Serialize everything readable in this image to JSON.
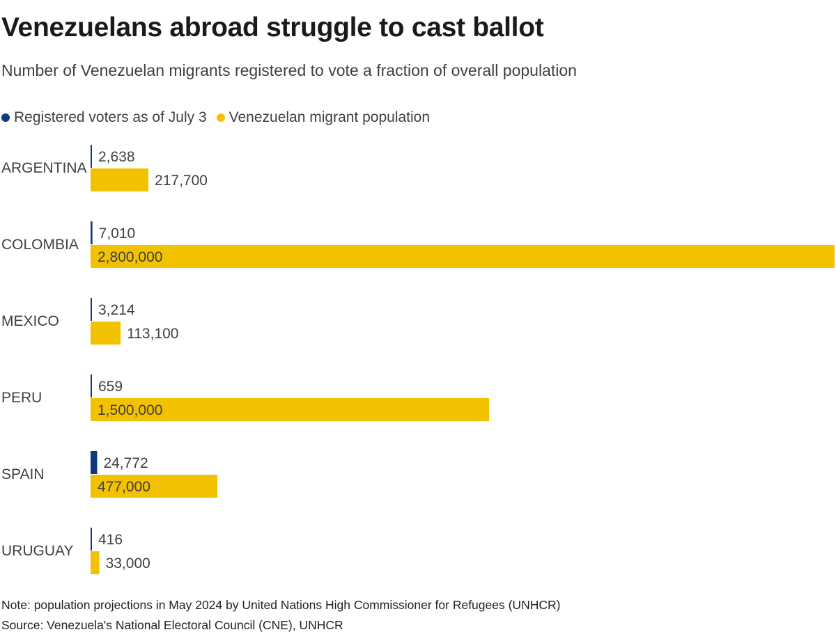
{
  "header": {
    "title": "Venezuelans abroad struggle to cast ballot",
    "subtitle": "Number of Venezuelan migrants registered to vote a fraction of overall population"
  },
  "legend": {
    "items": [
      {
        "label": "Registered voters as of July 3",
        "color": "#0d3a7d"
      },
      {
        "label": "Venezuelan migrant population",
        "color": "#f2c100"
      }
    ]
  },
  "chart_data": {
    "type": "bar",
    "orientation": "horizontal",
    "categories": [
      "ARGENTINA",
      "COLOMBIA",
      "MEXICO",
      "PERU",
      "SPAIN",
      "URUGUAY"
    ],
    "series": [
      {
        "name": "Registered voters as of July 3",
        "color": "#0d3a7d",
        "values": [
          2638,
          7010,
          3214,
          659,
          24772,
          416
        ],
        "labels": [
          "2,638",
          "7,010",
          "3,214",
          "659",
          "24,772",
          "416"
        ]
      },
      {
        "name": "Venezuelan migrant population",
        "color": "#f2c100",
        "values": [
          217700,
          2800000,
          113100,
          1500000,
          477000,
          33000
        ],
        "labels": [
          "217,700",
          "2,800,000",
          "113,100",
          "1,500,000",
          "477,000",
          "33,000"
        ]
      }
    ],
    "xlim": [
      0,
      2800000
    ],
    "grid": false,
    "legend_position": "top-left"
  },
  "footer": {
    "note": "Note: population projections in May 2024 by United Nations High Commissioner for Refugees (UNHCR)",
    "source": "Source: Venezuela's National Electoral Council (CNE), UNHCR"
  }
}
